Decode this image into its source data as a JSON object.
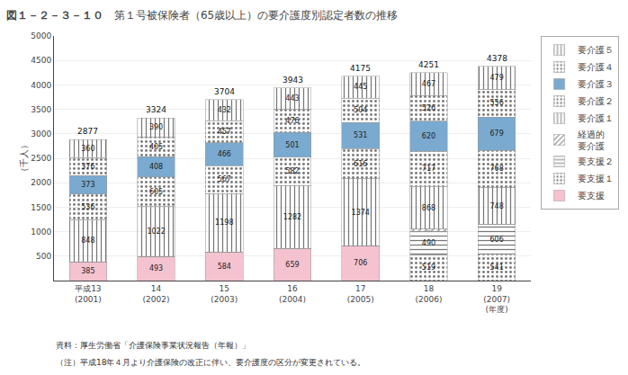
{
  "chart_data": {
    "type": "bar",
    "stacked": true,
    "data_labels": true,
    "grid": true,
    "legend": "right",
    "title": "第１号被保険者（65歳以上）の要介護度別認定者数の推移",
    "ylabel": "（千人）",
    "annotations": [
      "図１－２－３－１０",
      "資料：厚生労働省「介護保険事業状況報告（年報）」",
      "（注）平成18年４月より介護保険の改正に伴い、要介護度の区分が変更されている。"
    ],
    "categories": [
      "平成13\n(2001)",
      "14\n(2002)",
      "15\n(2003)",
      "16\n(2004)",
      "17\n(2005)",
      "18\n(2006)",
      "19\n(2007)\n(年度)"
    ],
    "series": [
      {
        "name": "要支援",
        "color": "#f5c2d0",
        "values": [
          385,
          493,
          584,
          659,
          706,
          0,
          0
        ]
      },
      {
        "name": "要支援１",
        "color": "#c5ddf0",
        "values": [
          0,
          0,
          0,
          0,
          0,
          519,
          541
        ]
      },
      {
        "name": "要支援２",
        "color": "#c8df88",
        "values": [
          0,
          0,
          0,
          0,
          0,
          490,
          606
        ]
      },
      {
        "name": "経過的\n要介護",
        "color": "#88c8c0",
        "values": [
          0,
          0,
          0,
          0,
          0,
          45,
          2
        ]
      },
      {
        "name": "要介護１",
        "color": "#fce8b0",
        "values": [
          848,
          1022,
          1198,
          1282,
          1374,
          868,
          748
        ]
      },
      {
        "name": "要介護２",
        "color": "#f5a090",
        "values": [
          536,
          605,
          567,
          582,
          616,
          717,
          768
        ]
      },
      {
        "name": "要介護３",
        "color": "#7aaad0",
        "values": [
          373,
          408,
          466,
          501,
          531,
          620,
          679
        ]
      },
      {
        "name": "要介護４",
        "color": "#c8df88",
        "values": [
          376,
          405,
          457,
          476,
          504,
          526,
          556
        ]
      },
      {
        "name": "要介護５",
        "color": "#90d4dc",
        "values": [
          360,
          390,
          432,
          443,
          445,
          467,
          479
        ]
      }
    ],
    "totals": [
      2877,
      3324,
      3704,
      3943,
      4175,
      4251,
      4378
    ],
    "ylim": [
      0,
      5000
    ],
    "yticks": [
      500,
      1000,
      1500,
      2000,
      2500,
      3000,
      3500,
      4000,
      4500,
      5000
    ]
  }
}
